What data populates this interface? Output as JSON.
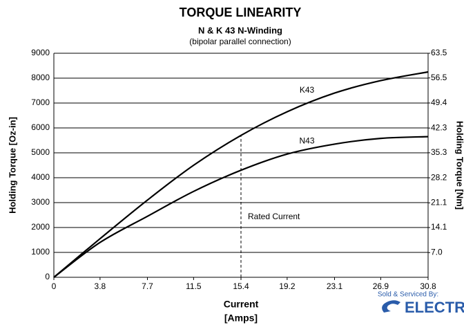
{
  "chart_data": {
    "type": "line",
    "title": "TORQUE LINEARITY",
    "subtitle": "N & K 43 N-Winding",
    "subtitle2": "(bipolar parallel connection)",
    "xlabel": [
      "Current",
      "[Amps]"
    ],
    "ylabel": "Holding Torque [Oz-in]",
    "y2label": "Holding Torque [Nm]",
    "annotation": "Rated Current",
    "x": [
      0,
      3.8,
      7.7,
      11.5,
      15.4,
      19.2,
      23.1,
      26.9,
      30.8
    ],
    "series": [
      {
        "name": "K43",
        "color": "#000000",
        "values": [
          0,
          1550,
          3100,
          4500,
          5700,
          6650,
          7400,
          7900,
          8250
        ]
      },
      {
        "name": "N43",
        "color": "#000000",
        "values": [
          0,
          1400,
          2450,
          3450,
          4300,
          4950,
          5350,
          5580,
          5650
        ]
      }
    ],
    "xlim": [
      0,
      30.8
    ],
    "xticks": [
      0,
      3.8,
      7.7,
      11.5,
      15.4,
      19.2,
      23.1,
      26.9,
      30.8
    ],
    "ylim": [
      0,
      9000
    ],
    "yticks": [
      0,
      1000,
      2000,
      3000,
      4000,
      5000,
      6000,
      7000,
      8000,
      9000
    ],
    "y2lim": [
      0,
      63.5
    ],
    "y2ticks": [
      {
        "value": 7.0,
        "label": "7.0"
      },
      14.1,
      21.1,
      28.2,
      35.3,
      42.3,
      49.4,
      56.5,
      63.5
    ],
    "grid": true,
    "logo": [
      "Sold & Serviced By:",
      "ELECTR"
    ]
  }
}
